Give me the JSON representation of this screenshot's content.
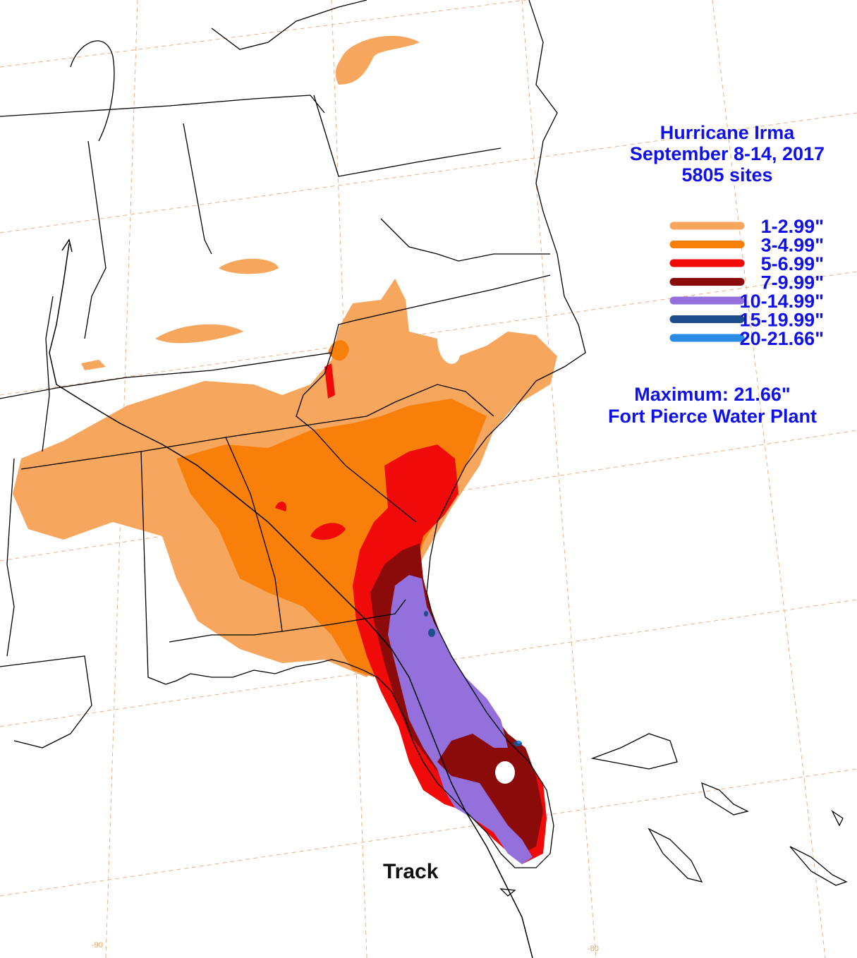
{
  "title": {
    "line1": "Hurricane Irma",
    "line2": "September 8-14, 2017",
    "line3": "5805 sites"
  },
  "legend": [
    {
      "label": "1-2.99\"",
      "color": "#f7a65e"
    },
    {
      "label": "3-4.99\"",
      "color": "#f77f0a"
    },
    {
      "label": "5-6.99\"",
      "color": "#f00a0a"
    },
    {
      "label": "7-9.99\"",
      "color": "#8b0a0a"
    },
    {
      "label": "10-14.99\"",
      "color": "#9370db"
    },
    {
      "label": "15-19.99\"",
      "color": "#1e4d8c"
    },
    {
      "label": "20-21.66\"",
      "color": "#2b8ce6"
    }
  ],
  "maximum": {
    "line1": "Maximum: 21.66\"",
    "line2": "Fort Pierce Water Plant"
  },
  "track_label": "Track",
  "grid_labels": {
    "lon_left": "-90",
    "lon_right": "-80"
  }
}
